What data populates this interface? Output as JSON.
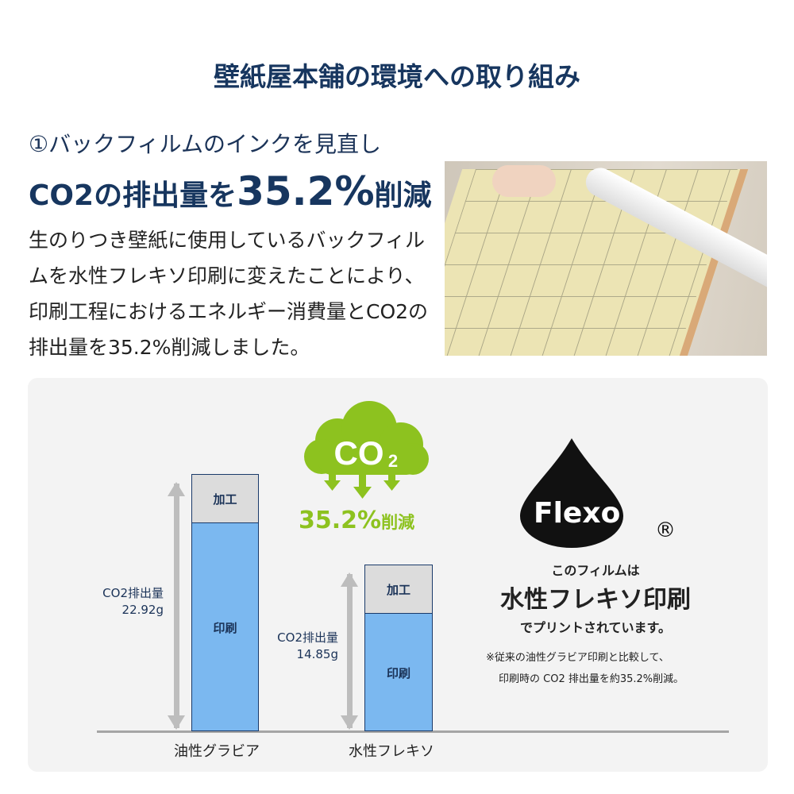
{
  "title": "壁紙屋本舗の環境への取り組み",
  "subtitle": "①バックフィルムのインクを見直し",
  "headline": {
    "pre": "CO2の排出量を",
    "value": "35.2%",
    "post": "削減"
  },
  "body": "生のりつき壁紙に使用しているバックフィルムを水性フレキソ印刷に変えたことにより、印刷工程におけるエネルギー消費量とCO2の排出量を35.2%削減しました。",
  "cloud": {
    "label": "CO",
    "sub": "2",
    "reduction": "35.2%",
    "reduction_suffix": "削減"
  },
  "flexo": {
    "logo": "Flexo",
    "registered": "®",
    "line1": "このフィルムは",
    "line2": "水性フレキソ印刷",
    "line3": "でプリントされています。",
    "note1": "※従来の油性グラビア印刷と比較して、",
    "note2": "印刷時の CO2 排出量を約35.2%削減。"
  },
  "colors": {
    "navy": "#17365f",
    "green": "#8dc21f",
    "bar_blue": "#7bb8f0",
    "bar_gray": "#dcdcdc"
  },
  "chart_data": {
    "type": "bar",
    "stacked": true,
    "categories": [
      "油性グラビア",
      "水性フレキソ"
    ],
    "segments": [
      "印刷",
      "加工"
    ],
    "values": [
      22.92,
      14.85
    ],
    "value_labels": [
      [
        "CO2排出量",
        "22.92g"
      ],
      [
        "CO2排出量",
        "14.85g"
      ]
    ],
    "unit": "g"
  }
}
